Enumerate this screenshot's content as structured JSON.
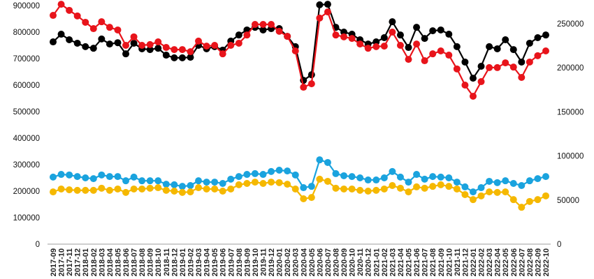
{
  "chart_data": {
    "type": "line",
    "title": "",
    "xlabel": "",
    "ylabel": "",
    "ylim": [
      0,
      900000
    ],
    "y2lim": [
      0,
      250000
    ],
    "left_ticks": [
      "0",
      "100000",
      "200000",
      "300000",
      "400000",
      "500000",
      "600000",
      "700000",
      "800000",
      "900000"
    ],
    "right_ticks": [
      "0",
      "50000",
      "100000",
      "150000",
      "200000",
      "250000"
    ],
    "grid": false,
    "legend": "none",
    "x": [
      "2017-09",
      "2017-10",
      "2017-11",
      "2017-12",
      "2018-01",
      "2018-02",
      "2018-03",
      "2018-04",
      "2018-05",
      "2018-06",
      "2018-07",
      "2018-08",
      "2018-09",
      "2018-10",
      "2018-11",
      "2018-12",
      "2019-01",
      "2019-02",
      "2019-03",
      "2019-04",
      "2019-05",
      "2019-06",
      "2019-07",
      "2019-08",
      "2019-09",
      "2019-10",
      "2019-11",
      "2019-12",
      "2020-01",
      "2020-02",
      "2020-03",
      "2020-04",
      "2020-05",
      "2020-06",
      "2020-07",
      "2020-08",
      "2020-09",
      "2020-10",
      "2020-11",
      "2020-12",
      "2021-01",
      "2021-02",
      "2021-03",
      "2021-04",
      "2021-05",
      "2021-06",
      "2021-07",
      "2021-08",
      "2021-09",
      "2021-10",
      "2021-11",
      "2021-12",
      "2022-01",
      "2022-02",
      "2022-03",
      "2022-04",
      "2022-05",
      "2022-06",
      "2022-07",
      "2022-08",
      "2022-09",
      "2022-10"
    ],
    "series": [
      {
        "color": "#000000",
        "values": [
          763000,
          792000,
          771000,
          758000,
          745000,
          739000,
          774000,
          755000,
          760000,
          718000,
          758000,
          737000,
          734000,
          739000,
          713000,
          703000,
          703000,
          705000,
          750000,
          737000,
          745000,
          732000,
          766000,
          789000,
          808000,
          818000,
          808000,
          813000,
          813000,
          784000,
          745000,
          618000,
          639000,
          903000,
          905000,
          818000,
          800000,
          792000,
          771000,
          755000,
          763000,
          779000,
          839000,
          789000,
          742000,
          818000,
          776000,
          805000,
          808000,
          792000,
          745000,
          687000,
          626000,
          671000,
          745000,
          737000,
          771000,
          734000,
          687000,
          758000,
          779000,
          789000
        ]
      },
      {
        "color": "#e8141b",
        "values": [
          863000,
          905000,
          882000,
          861000,
          837000,
          813000,
          839000,
          818000,
          808000,
          750000,
          782000,
          750000,
          753000,
          763000,
          742000,
          734000,
          734000,
          726000,
          766000,
          747000,
          750000,
          718000,
          750000,
          758000,
          789000,
          829000,
          829000,
          829000,
          803000,
          784000,
          729000,
          592000,
          605000,
          853000,
          876000,
          789000,
          782000,
          776000,
          755000,
          739000,
          745000,
          747000,
          800000,
          750000,
          697000,
          755000,
          692000,
          718000,
          729000,
          713000,
          661000,
          600000,
          558000,
          613000,
          666000,
          666000,
          684000,
          668000,
          629000,
          687000,
          711000,
          729000
        ]
      },
      {
        "color": "#1aa3de",
        "values": [
          253000,
          263000,
          261000,
          255000,
          250000,
          247000,
          261000,
          255000,
          255000,
          239000,
          253000,
          239000,
          239000,
          239000,
          226000,
          224000,
          218000,
          221000,
          239000,
          234000,
          234000,
          229000,
          245000,
          255000,
          263000,
          266000,
          263000,
          274000,
          279000,
          276000,
          261000,
          213000,
          218000,
          318000,
          308000,
          266000,
          258000,
          255000,
          250000,
          242000,
          242000,
          250000,
          274000,
          253000,
          234000,
          263000,
          245000,
          255000,
          253000,
          250000,
          234000,
          216000,
          197000,
          213000,
          237000,
          232000,
          239000,
          229000,
          221000,
          239000,
          247000,
          255000
        ]
      },
      {
        "color": "#f5b800",
        "values": [
          197000,
          208000,
          205000,
          203000,
          203000,
          203000,
          211000,
          203000,
          208000,
          195000,
          208000,
          208000,
          211000,
          213000,
          203000,
          200000,
          195000,
          197000,
          213000,
          208000,
          208000,
          200000,
          208000,
          224000,
          229000,
          234000,
          229000,
          234000,
          232000,
          226000,
          208000,
          171000,
          176000,
          245000,
          237000,
          211000,
          208000,
          208000,
          203000,
          200000,
          203000,
          208000,
          221000,
          211000,
          197000,
          216000,
          211000,
          218000,
          224000,
          218000,
          208000,
          187000,
          168000,
          182000,
          197000,
          195000,
          197000,
          168000,
          139000,
          161000,
          168000,
          182000
        ]
      }
    ]
  }
}
